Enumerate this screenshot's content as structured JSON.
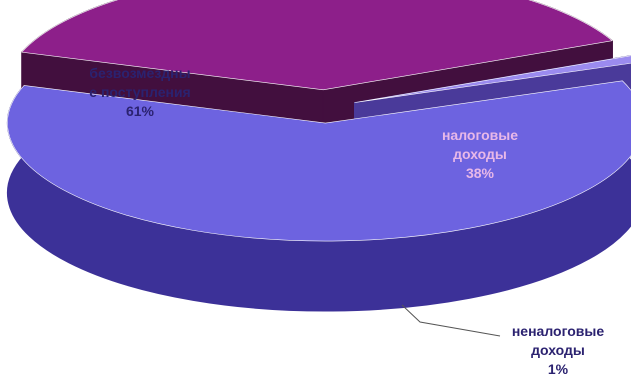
{
  "chart_data": {
    "type": "pie",
    "style": "3d-exploded",
    "title": "",
    "slices": [
      {
        "label_lines": [
          "безвозмездны",
          "е поступления"
        ],
        "percent_label": "61%",
        "value": 61,
        "top_color": "#6d63e0",
        "side_color": "#3c3198",
        "label_color": "#2b2270"
      },
      {
        "label_lines": [
          "налоговые",
          "доходы"
        ],
        "percent_label": "38%",
        "value": 38,
        "top_color": "#8d1f8a",
        "side_color": "#420f3e",
        "label_color": "#e8b8e8"
      },
      {
        "label_lines": [
          "неналоговые",
          "доходы"
        ],
        "percent_label": "1%",
        "value": 1,
        "top_color": "#9b8bef",
        "side_color": "#4a3a9a",
        "label_color": "#2b2270"
      }
    ],
    "legend": "none",
    "labels": "data-labels"
  }
}
